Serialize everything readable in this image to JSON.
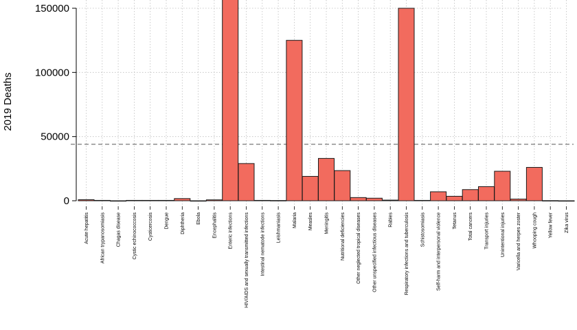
{
  "chart_data": {
    "type": "bar",
    "title": "",
    "xlabel": "",
    "ylabel": "2019 Deaths",
    "ylim": [
      0,
      150000
    ],
    "yticks": [
      0,
      50000,
      100000,
      150000
    ],
    "ytick_labels": [
      "0",
      "50000",
      "100000",
      "150000"
    ],
    "reference_line": 44000,
    "grid": true,
    "colors": {
      "bar_fill": "#f26b5e",
      "bar_stroke": "#1a1a1a",
      "grid": "#bdbdbd",
      "reference_line": "#555555"
    },
    "categories": [
      "Acute hepatitis",
      "African trypanosomiasis",
      "Chagas disease",
      "Cystic echinococcosis",
      "Cysticercosis",
      "Dengue",
      "Diphtheria",
      "Ebola",
      "Encephalitis",
      "Enteric infections",
      "HIV/AIDS and sexually transmitted infections",
      "Intestinal nematode infections",
      "Leishmaniasis",
      "Malaria",
      "Measles",
      "Meningitis",
      "Nutritional deficiencies",
      "Other neglected tropical diseases",
      "Other unspecified infectious diseases",
      "Rabies",
      "Respiratory infections and tuberculosis",
      "Schistosomiasis",
      "Self-harm and interpersonal violence",
      "Tetanus",
      "Total cancers",
      "Transport injuries",
      "Unintentional injuries",
      "Varicella and herpes zoster",
      "Whooping cough",
      "Yellow fever",
      "Zika virus"
    ],
    "values": [
      800,
      300,
      0,
      300,
      300,
      300,
      1700,
      0,
      700,
      160000,
      29000,
      300,
      200,
      125000,
      19000,
      33000,
      23500,
      2500,
      2000,
      500,
      150000,
      300,
      7000,
      3500,
      8700,
      11000,
      23000,
      1300,
      26000,
      100,
      0
    ]
  }
}
